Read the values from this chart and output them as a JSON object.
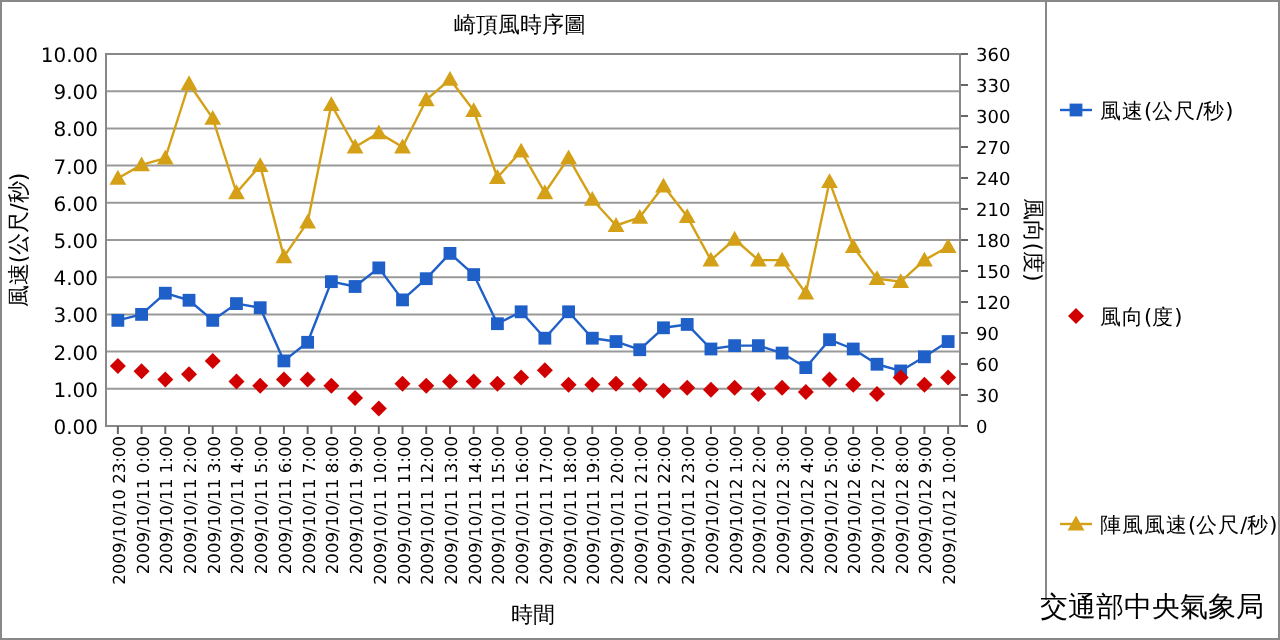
{
  "chart_data": {
    "type": "line",
    "title": "崎頂風時序圖",
    "xlabel": "時間",
    "ylabel": "風速(公尺/秒)",
    "y2label": "風向(度)",
    "categories": [
      "2009/10/10 23:00",
      "2009/10/11 0:00",
      "2009/10/11 1:00",
      "2009/10/11 2:00",
      "2009/10/11 3:00",
      "2009/10/11 4:00",
      "2009/10/11 5:00",
      "2009/10/11 6:00",
      "2009/10/11 7:00",
      "2009/10/11 8:00",
      "2009/10/11 9:00",
      "2009/10/11 10:00",
      "2009/10/11 11:00",
      "2009/10/11 12:00",
      "2009/10/11 13:00",
      "2009/10/11 14:00",
      "2009/10/11 15:00",
      "2009/10/11 16:00",
      "2009/10/11 17:00",
      "2009/10/11 18:00",
      "2009/10/11 19:00",
      "2009/10/11 20:00",
      "2009/10/11 21:00",
      "2009/10/11 22:00",
      "2009/10/11 23:00",
      "2009/10/12 0:00",
      "2009/10/12 1:00",
      "2009/10/12 2:00",
      "2009/10/12 3:00",
      "2009/10/12 4:00",
      "2009/10/12 5:00",
      "2009/10/12 6:00",
      "2009/10/12 7:00",
      "2009/10/12 8:00",
      "2009/10/12 9:00",
      "2009/10/12 10:00"
    ],
    "series": [
      {
        "name": "風速(公尺/秒)",
        "type": "line",
        "marker": "square",
        "color": "#1f5fc8",
        "values": [
          2.84,
          3.0,
          3.57,
          3.38,
          2.84,
          3.29,
          3.18,
          1.75,
          2.25,
          3.88,
          3.75,
          4.25,
          3.39,
          3.96,
          4.64,
          4.07,
          2.75,
          3.07,
          2.36,
          3.07,
          2.36,
          2.27,
          2.05,
          2.64,
          2.73,
          2.07,
          2.16,
          2.16,
          1.96,
          1.57,
          2.32,
          2.07,
          1.66,
          1.48,
          1.86,
          2.27
        ]
      },
      {
        "name": "風向(度)",
        "type": "scatter",
        "marker": "diamond",
        "axis": "y2",
        "color": "#d00000",
        "values": [
          58,
          53,
          45,
          50,
          63,
          43,
          39,
          45,
          45,
          39,
          27,
          17,
          41,
          39,
          43,
          43,
          41,
          47,
          54,
          40,
          40,
          41,
          40,
          34,
          37,
          35,
          37,
          31,
          37,
          33,
          45,
          40,
          31,
          47,
          40,
          47
        ]
      },
      {
        "name": "陣風風速(公尺/秒)",
        "type": "line",
        "marker": "triangle",
        "color": "#d4a017",
        "values": [
          6.66,
          7.02,
          7.2,
          9.2,
          8.27,
          6.27,
          7.0,
          4.55,
          5.48,
          8.64,
          7.5,
          7.88,
          7.5,
          8.77,
          9.32,
          8.48,
          6.68,
          7.39,
          6.27,
          7.21,
          6.09,
          5.39,
          5.61,
          6.45,
          5.63,
          4.46,
          5.02,
          4.46,
          4.46,
          3.57,
          6.57,
          4.82,
          3.96,
          3.88,
          4.46,
          4.82
        ]
      }
    ],
    "ylim": [
      0,
      10
    ],
    "yticks": [
      {
        "value": 0,
        "label": "0.00"
      },
      {
        "value": 1,
        "label": "1.00"
      },
      {
        "value": 2,
        "label": "2.00"
      },
      {
        "value": 3,
        "label": "3.00"
      },
      {
        "value": 4,
        "label": "4.00"
      },
      {
        "value": 5,
        "label": "5.00"
      },
      {
        "value": 6,
        "label": "6.00"
      },
      {
        "value": 7,
        "label": "7.00"
      },
      {
        "value": 8,
        "label": "8.00"
      },
      {
        "value": 9,
        "label": "9.00"
      },
      {
        "value": 10,
        "label": "10.00"
      }
    ],
    "y2lim": [
      0,
      360
    ],
    "y2ticks": [
      0,
      30,
      60,
      90,
      120,
      150,
      180,
      210,
      240,
      270,
      300,
      330,
      360
    ],
    "grid": "y",
    "legend": "right",
    "annotations": [
      "交通部中央氣象局"
    ]
  }
}
